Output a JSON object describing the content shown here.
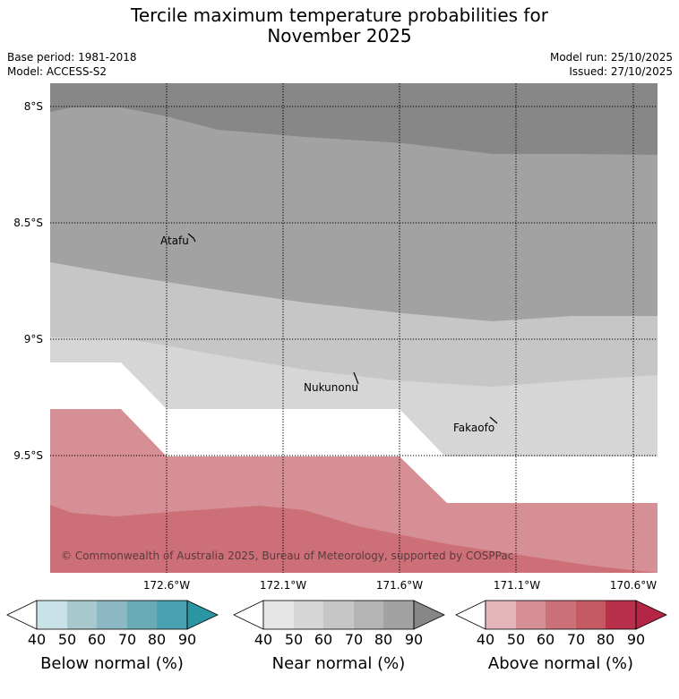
{
  "header": {
    "title_line1": "Tercile maximum temperature probabilities for",
    "title_line2": "November 2025",
    "base_period": "Base period: 1981-2018",
    "model": "Model: ACCESS-S2",
    "model_run": "Model run: 25/10/2025",
    "issued": "Issued: 27/10/2025"
  },
  "map": {
    "lat_labels": [
      "8°S",
      "8.5°S",
      "9°S",
      "9.5°S"
    ],
    "lon_labels": [
      "172.6°W",
      "172.1°W",
      "171.6°W",
      "171.1°W",
      "170.6°W"
    ],
    "places": [
      "Atafu",
      "Nukunonu",
      "Fakaofo"
    ],
    "copyright": "© Commonwealth of Australia 2025, Bureau of Meteorology, supported by COSPPac"
  },
  "colorbars": [
    {
      "label": "Below normal (%)",
      "ticks": [
        "40",
        "50",
        "60",
        "70",
        "80",
        "90"
      ],
      "colors": [
        "#c8e2e8",
        "#a7c8cc",
        "#8bb8c2",
        "#6aaab7",
        "#48a0b0",
        "#2b95a3"
      ]
    },
    {
      "label": "Near normal (%)",
      "ticks": [
        "40",
        "50",
        "60",
        "70",
        "80",
        "90"
      ],
      "colors": [
        "#e6e6e6",
        "#d6d6d6",
        "#c6c6c6",
        "#b4b4b4",
        "#a2a2a2",
        "#878787"
      ]
    },
    {
      "label": "Above normal (%)",
      "ticks": [
        "40",
        "50",
        "60",
        "70",
        "80",
        "90"
      ],
      "colors": [
        "#e3b6bb",
        "#d78f96",
        "#cc7178",
        "#c55a64",
        "#b83049",
        "#b52646"
      ]
    }
  ]
}
